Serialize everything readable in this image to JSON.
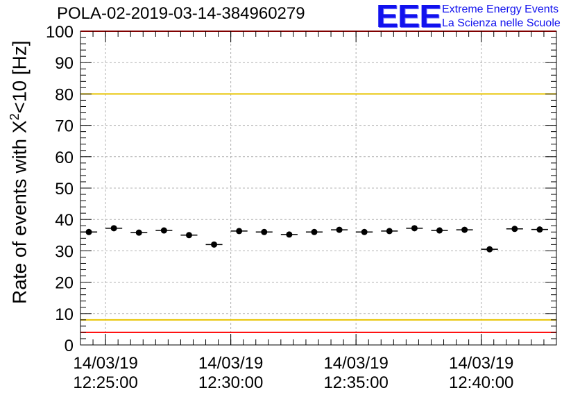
{
  "header": {
    "title": "POLA-02-2019-03-14-384960279"
  },
  "logo": {
    "mark": "EEE",
    "line1": "Extreme Energy Events",
    "line2": "La Scienza nelle Scuole"
  },
  "colors": {
    "yellow_line": "#e8c400",
    "red_line": "#ff0000",
    "logo_blue": "#1111ee",
    "grid": "#b0b0b0",
    "marker": "#000000"
  },
  "chart_data": {
    "type": "scatter",
    "ylabel_main": "Rate of events with X",
    "ylabel_sup": "2",
    "ylabel_tail": "<10 [Hz]",
    "ylim": [
      0,
      100
    ],
    "y_ticks": [
      "0",
      "10",
      "20",
      "30",
      "40",
      "50",
      "60",
      "70",
      "80",
      "90",
      "100"
    ],
    "x_ticks": [
      {
        "date": "14/03/19",
        "time": "12:25:00"
      },
      {
        "date": "14/03/19",
        "time": "12:30:00"
      },
      {
        "date": "14/03/19",
        "time": "12:35:00"
      },
      {
        "date": "14/03/19",
        "time": "12:40:00"
      }
    ],
    "grid": true,
    "reference_lines": [
      {
        "y": 80,
        "color": "yellow"
      },
      {
        "y": 8,
        "color": "yellow"
      },
      {
        "y": 4,
        "color": "red"
      },
      {
        "y": 100,
        "color": "red"
      }
    ],
    "series": [
      {
        "x": [
          "12:24:20",
          "12:25:20",
          "12:26:20",
          "12:27:20",
          "12:28:20",
          "12:29:20",
          "12:30:20",
          "12:31:20",
          "12:32:20",
          "12:33:20",
          "12:34:20",
          "12:35:20",
          "12:36:20",
          "12:37:20",
          "12:38:20",
          "12:39:20",
          "12:40:20",
          "12:41:20",
          "12:42:20"
        ],
        "y": [
          36.0,
          37.2,
          35.8,
          36.5,
          35.0,
          32.0,
          36.3,
          36.0,
          35.2,
          36.0,
          36.7,
          36.0,
          36.3,
          37.2,
          36.5,
          36.7,
          30.5,
          37.0,
          36.8
        ]
      }
    ]
  }
}
